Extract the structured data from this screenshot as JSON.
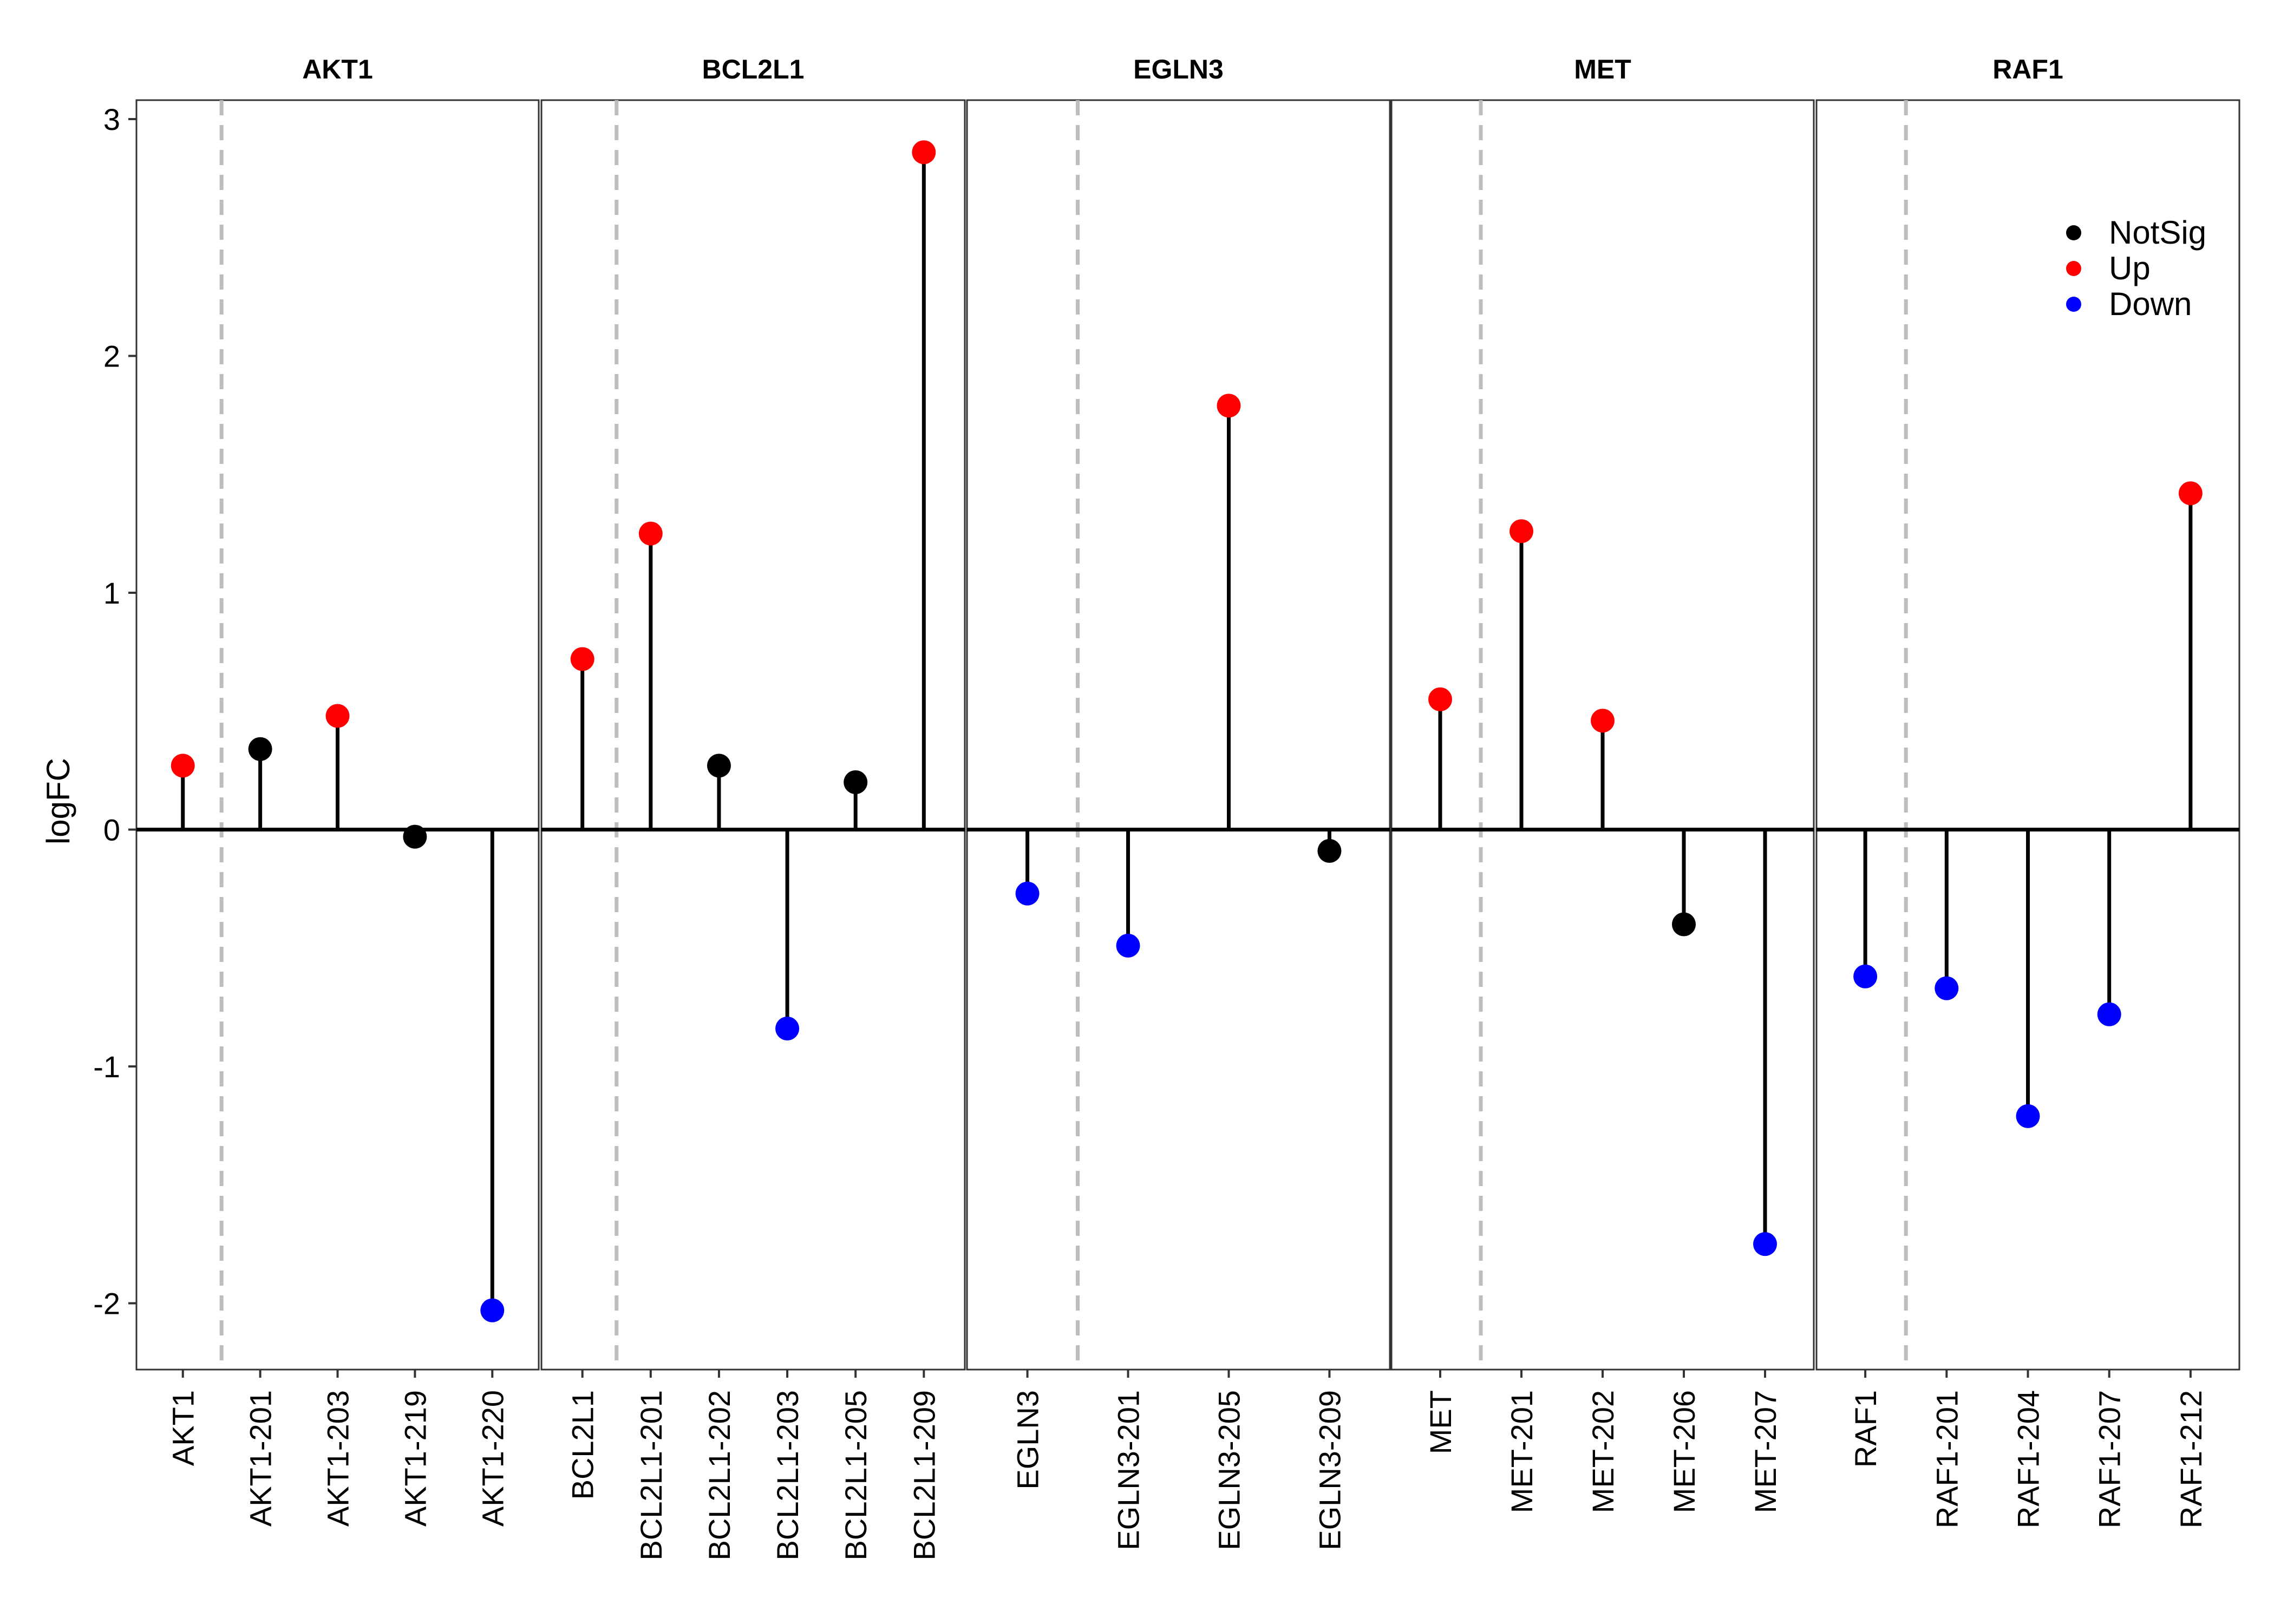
{
  "chart_data": {
    "type": "lollipop",
    "ylabel": "logFC",
    "ylim": [
      -2.28,
      3.08
    ],
    "yticks": [
      3,
      2,
      1,
      0,
      -1,
      -2
    ],
    "legend": {
      "position": "top-right",
      "entries": [
        {
          "label": "NotSig",
          "color": "#000000"
        },
        {
          "label": "Up",
          "color": "#ff0000"
        },
        {
          "label": "Down",
          "color": "#0000ff"
        }
      ]
    },
    "panels": [
      {
        "title": "AKT1",
        "gene": "AKT1",
        "gene_value": 0.27,
        "gene_status": "Up",
        "categories": [
          "AKT1-201",
          "AKT1-203",
          "AKT1-219",
          "AKT1-220"
        ],
        "values": [
          0.34,
          0.48,
          -0.03,
          -2.03
        ],
        "status": [
          "NotSig",
          "Up",
          "NotSig",
          "Down"
        ]
      },
      {
        "title": "BCL2L1",
        "gene": "BCL2L1",
        "gene_value": 0.72,
        "gene_status": "Up",
        "categories": [
          "BCL2L1-201",
          "BCL2L1-202",
          "BCL2L1-203",
          "BCL2L1-205",
          "BCL2L1-209"
        ],
        "values": [
          1.25,
          0.27,
          -0.84,
          0.2,
          2.86
        ],
        "status": [
          "Up",
          "NotSig",
          "Down",
          "NotSig",
          "Up"
        ]
      },
      {
        "title": "EGLN3",
        "gene": "EGLN3",
        "gene_value": -0.27,
        "gene_status": "Down",
        "categories": [
          "EGLN3-201",
          "EGLN3-205",
          "EGLN3-209"
        ],
        "values": [
          -0.49,
          1.79,
          -0.09
        ],
        "status": [
          "Down",
          "Up",
          "NotSig"
        ]
      },
      {
        "title": "MET",
        "gene": "MET",
        "gene_value": 0.55,
        "gene_status": "Up",
        "categories": [
          "MET-201",
          "MET-202",
          "MET-206",
          "MET-207"
        ],
        "values": [
          1.26,
          0.46,
          -0.4,
          -1.75
        ],
        "status": [
          "Up",
          "Up",
          "NotSig",
          "Down"
        ]
      },
      {
        "title": "RAF1",
        "gene": "RAF1",
        "gene_value": -0.62,
        "gene_status": "Down",
        "categories": [
          "RAF1-201",
          "RAF1-204",
          "RAF1-207",
          "RAF1-212"
        ],
        "values": [
          -0.67,
          -1.21,
          -0.78,
          1.42
        ],
        "status": [
          "Down",
          "Down",
          "Down",
          "Up"
        ]
      }
    ]
  }
}
